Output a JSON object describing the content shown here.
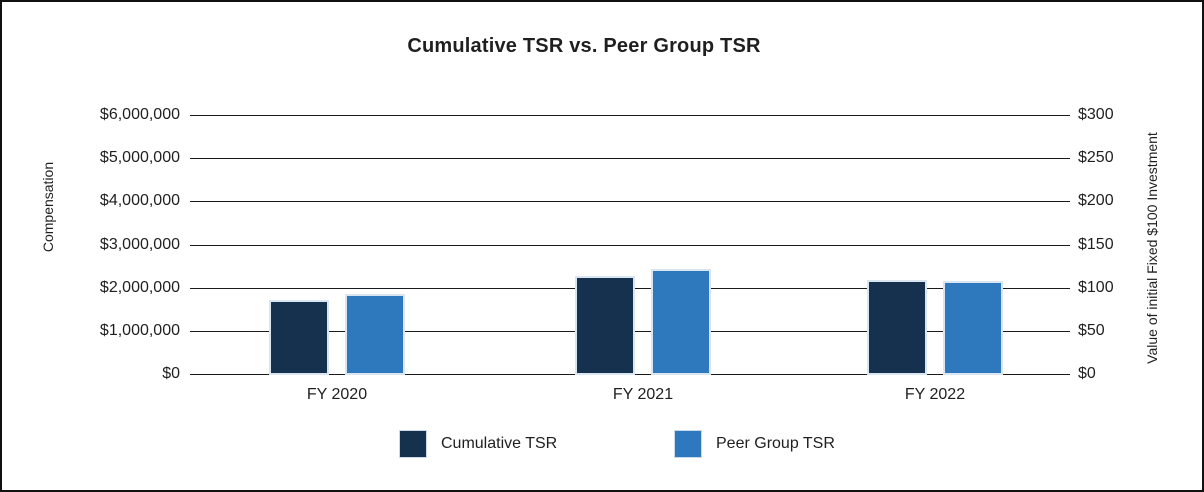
{
  "chart_data": {
    "type": "bar",
    "title": "Cumulative TSR vs. Peer Group TSR",
    "categories": [
      "FY 2020",
      "FY 2021",
      "FY 2022"
    ],
    "series": [
      {
        "name": "Cumulative TSR",
        "color": "#15314e",
        "axis": "right",
        "values": [
          87,
          115,
          110
        ]
      },
      {
        "name": "Peer Group TSR",
        "color": "#2e79bd",
        "axis": "right",
        "values": [
          94,
          123,
          109
        ]
      }
    ],
    "left_axis": {
      "label": "Compensation",
      "tick_labels_top_to_bottom": [
        "$6,000,000",
        "$5,000,000",
        "$4,000,000",
        "$3,000,000",
        "$2,000,000",
        "$1,000,000",
        "$0"
      ],
      "min": 0,
      "max": 6000000,
      "step": 1000000
    },
    "right_axis": {
      "label": "Value of initial Fixed $100 Investment",
      "tick_labels_top_to_bottom": [
        "$300",
        "$250",
        "$200",
        "$150",
        "$100",
        "$50",
        "$0"
      ],
      "min": 0,
      "max": 300,
      "step": 50
    },
    "legend": {
      "position": "bottom",
      "entries": [
        "Cumulative TSR",
        "Peer Group TSR"
      ]
    },
    "grid": true,
    "bar_outline_color": "#d9e6f2",
    "colors": {
      "cumulative_tsr": "#15314e",
      "peer_group_tsr": "#2e79bd"
    }
  }
}
